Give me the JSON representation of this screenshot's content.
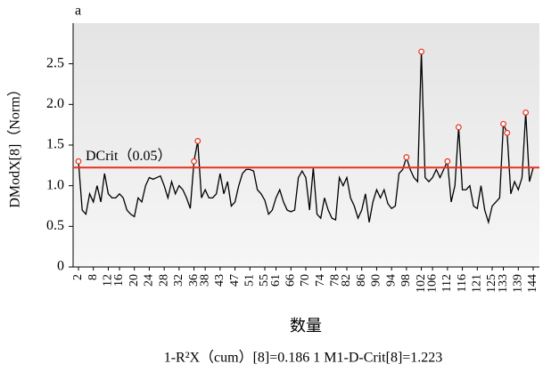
{
  "chart_data": {
    "type": "line",
    "panel_label": "a",
    "ylabel": "DModX[8]（Norm）",
    "xlabel": "数量",
    "footnote": "1-R²X（cum）[8]=0.186 1    M1-D-Crit[8]=1.223",
    "dcrit": 1.223,
    "dcrit_label": "DCrit（0.05）",
    "dcrit_color": "#e8321e",
    "color": "#000000",
    "outlier_color": "#e8321e",
    "ylim": [
      0,
      3
    ],
    "yticks": [
      0,
      0.5,
      {
        "value": 1,
        "label": "1.0"
      },
      1.5,
      {
        "value": 2,
        "label": "2.0"
      },
      2.5
    ],
    "categories": [
      "2",
      null,
      null,
      null,
      "8",
      null,
      null,
      null,
      "12",
      null,
      null,
      "16",
      null,
      null,
      null,
      "20",
      null,
      null,
      null,
      "24",
      null,
      null,
      null,
      "28",
      null,
      null,
      null,
      "32",
      null,
      null,
      null,
      "36",
      null,
      null,
      "38",
      null,
      null,
      null,
      "43",
      null,
      null,
      null,
      "47",
      null,
      null,
      null,
      "51",
      null,
      null,
      null,
      "55",
      null,
      null,
      "61",
      null,
      null,
      null,
      "66",
      null,
      null,
      null,
      "70",
      null,
      null,
      null,
      "74",
      null,
      null,
      null,
      "78",
      null,
      null,
      "82",
      null,
      null,
      null,
      "86",
      null,
      null,
      null,
      "90",
      null,
      null,
      null,
      "94",
      null,
      null,
      null,
      "98",
      null,
      null,
      null,
      "102",
      null,
      null,
      "106",
      null,
      null,
      null,
      "112",
      null,
      null,
      null,
      "116",
      null,
      null,
      null,
      "121",
      null,
      null,
      null,
      "125",
      null,
      null,
      "133",
      null,
      null,
      null,
      "139",
      null,
      null,
      null,
      "144"
    ],
    "values": [
      1.3,
      0.7,
      0.65,
      0.9,
      0.8,
      1.0,
      0.8,
      1.15,
      0.9,
      0.85,
      0.85,
      0.9,
      0.85,
      0.7,
      0.65,
      0.62,
      0.85,
      0.8,
      1.0,
      1.1,
      1.08,
      1.1,
      1.12,
      1.0,
      0.85,
      1.05,
      0.9,
      1.0,
      0.95,
      0.85,
      0.72,
      1.3,
      1.55,
      0.85,
      0.95,
      0.85,
      0.85,
      0.9,
      1.15,
      0.9,
      1.05,
      0.75,
      0.8,
      1.0,
      1.15,
      1.2,
      1.2,
      1.18,
      0.95,
      0.9,
      0.82,
      0.65,
      0.7,
      0.85,
      0.95,
      0.8,
      0.7,
      0.68,
      0.7,
      1.1,
      1.18,
      1.1,
      0.7,
      1.22,
      0.65,
      0.6,
      0.85,
      0.7,
      0.6,
      0.58,
      1.1,
      1.0,
      1.1,
      0.85,
      0.75,
      0.6,
      0.7,
      0.9,
      0.55,
      0.8,
      0.95,
      0.85,
      0.95,
      0.78,
      0.72,
      0.75,
      1.15,
      1.2,
      1.35,
      1.2,
      1.1,
      1.05,
      2.65,
      1.1,
      1.05,
      1.1,
      1.2,
      1.1,
      1.2,
      1.3,
      0.8,
      1.0,
      1.72,
      0.95,
      0.95,
      1.0,
      0.75,
      0.72,
      1.0,
      0.7,
      0.55,
      0.75,
      0.8,
      0.85,
      1.76,
      1.65,
      0.9,
      1.05,
      0.95,
      1.1,
      1.9,
      1.05,
      1.22
    ]
  }
}
